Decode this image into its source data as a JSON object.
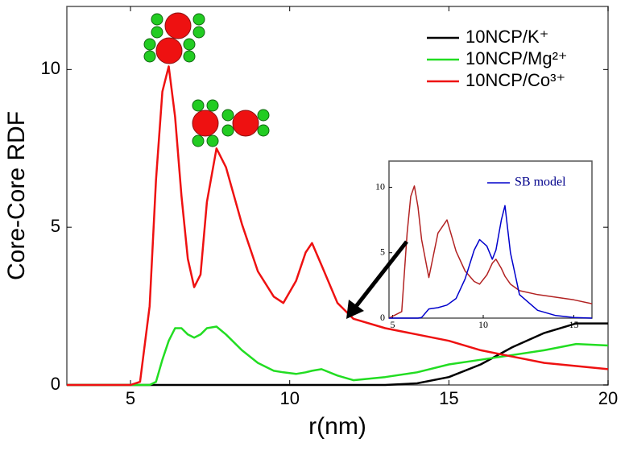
{
  "chart_data": [
    {
      "type": "line",
      "x_label": "r(nm)",
      "y_label": "Core-Core RDF",
      "xlim": [
        3,
        20
      ],
      "ylim": [
        0,
        12
      ],
      "xticks": [
        5,
        10,
        15,
        20
      ],
      "yticks": [
        0,
        5,
        10
      ],
      "legend": "upper right",
      "x": [
        3,
        5,
        5.3,
        5.6,
        5.8,
        6.0,
        6.2,
        6.4,
        6.6,
        6.8,
        7.0,
        7.2,
        7.4,
        7.7,
        8.0,
        8.5,
        9.0,
        9.5,
        9.8,
        10.2,
        10.5,
        10.7,
        11.0,
        11.5,
        12,
        13,
        14,
        15,
        16,
        17,
        18,
        19,
        20
      ],
      "series": [
        {
          "name": "10NCP/K⁺",
          "color": "#000000",
          "values": [
            0,
            0,
            0,
            0,
            0,
            0,
            0,
            0,
            0,
            0,
            0,
            0,
            0,
            0,
            0,
            0,
            0,
            0,
            0,
            0,
            0,
            0,
            0,
            0,
            0,
            0,
            0.05,
            0.25,
            0.65,
            1.2,
            1.65,
            1.95,
            1.95
          ]
        },
        {
          "name": "10NCP/Mg²⁺",
          "color": "#22dd22",
          "values": [
            0,
            0,
            0,
            0,
            0.1,
            0.8,
            1.4,
            1.8,
            1.8,
            1.6,
            1.5,
            1.6,
            1.8,
            1.85,
            1.6,
            1.1,
            0.7,
            0.45,
            0.4,
            0.35,
            0.4,
            0.45,
            0.5,
            0.3,
            0.15,
            0.25,
            0.4,
            0.65,
            0.8,
            0.95,
            1.1,
            1.3,
            1.25
          ]
        },
        {
          "name": "10NCP/Co³⁺",
          "color": "#ee1111",
          "values": [
            0,
            0,
            0.1,
            2.5,
            6.5,
            9.3,
            10.1,
            8.5,
            6.0,
            4.0,
            3.1,
            3.5,
            5.8,
            7.5,
            6.9,
            5.1,
            3.6,
            2.8,
            2.6,
            3.3,
            4.2,
            4.5,
            3.8,
            2.6,
            2.1,
            1.8,
            1.6,
            1.4,
            1.1,
            0.9,
            0.7,
            0.6,
            0.5
          ]
        }
      ]
    },
    {
      "type": "line",
      "xlim": [
        4.8,
        16
      ],
      "ylim": [
        0,
        12
      ],
      "xticks": [
        5,
        10,
        15
      ],
      "yticks": [
        0,
        5,
        10
      ],
      "legend": "upper right",
      "x": [
        4.8,
        5.5,
        5.8,
        6.0,
        6.2,
        6.4,
        6.6,
        7,
        7.5,
        8,
        8.5,
        9,
        9.5,
        9.8,
        10.2,
        10.5,
        10.7,
        11,
        11.2,
        11.5,
        12,
        13,
        14,
        15,
        16
      ],
      "series": [
        {
          "color": "#b22222",
          "values": [
            0,
            0.5,
            6.5,
            9.3,
            10.1,
            8.5,
            6.0,
            3.1,
            6.5,
            7.5,
            5.1,
            3.6,
            2.8,
            2.6,
            3.3,
            4.2,
            4.5,
            3.8,
            3.2,
            2.6,
            2.1,
            1.8,
            1.6,
            1.4,
            1.1
          ]
        },
        {
          "name": "SB model",
          "color": "#0000cc",
          "values": [
            0,
            0,
            0,
            0,
            0,
            0,
            0.05,
            0.7,
            0.8,
            1.0,
            1.5,
            3.0,
            5.2,
            6.0,
            5.5,
            4.5,
            5.2,
            7.5,
            8.6,
            5.0,
            1.8,
            0.6,
            0.2,
            0.05,
            0
          ]
        }
      ]
    }
  ]
}
